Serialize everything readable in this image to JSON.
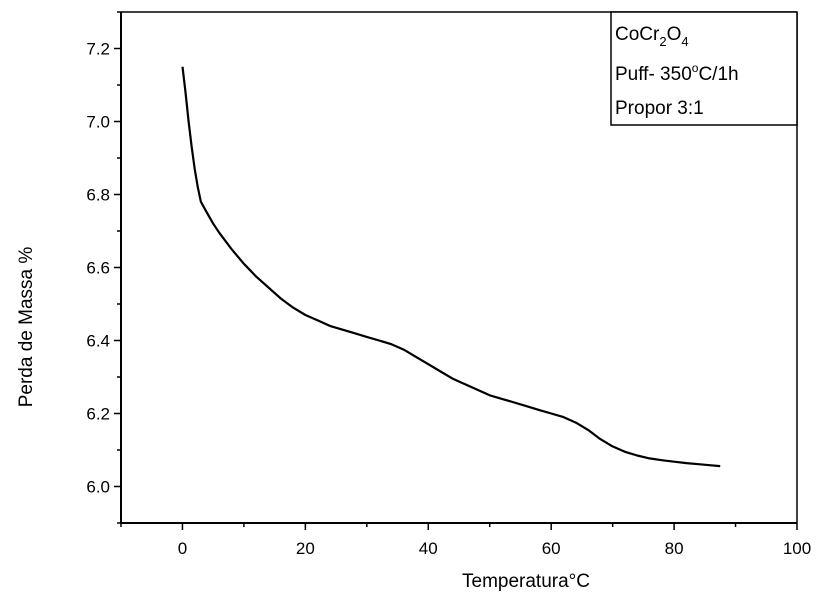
{
  "chart_data": {
    "type": "line",
    "xlabel": "Temperatura°C",
    "ylabel": "Perda de Massa %",
    "xlim": [
      -10,
      100
    ],
    "ylim": [
      5.9,
      7.3
    ],
    "x_ticks": [
      0,
      20,
      40,
      60,
      80,
      100
    ],
    "y_ticks": [
      6.0,
      6.2,
      6.4,
      6.6,
      6.8,
      7.0,
      7.2
    ],
    "x_tick_labels": [
      "0",
      "20",
      "40",
      "60",
      "80",
      "100"
    ],
    "y_tick_labels": [
      "6.0",
      "6.2",
      "6.4",
      "6.6",
      "6.8",
      "7.0",
      "7.2"
    ],
    "grid": false,
    "legend": {
      "placement": "top-right",
      "lines": [
        {
          "main": "CoCr",
          "sub1": "2",
          "mid": "O",
          "sub2": "4"
        },
        {
          "main": "Puff- 350",
          "sup": "o",
          "rest": "C/1h"
        },
        {
          "main": "Propor 3:1"
        }
      ]
    },
    "series": [
      {
        "x": [
          0,
          0.5,
          1,
          1.5,
          2,
          2.5,
          3,
          4,
          5,
          6,
          8,
          10,
          12,
          14,
          16,
          18,
          20,
          22,
          24,
          26,
          28,
          30,
          32,
          34,
          36,
          38,
          40,
          42,
          44,
          46,
          48,
          50,
          52,
          54,
          56,
          58,
          60,
          62,
          64,
          66,
          68,
          70,
          72,
          74,
          76,
          78,
          80,
          82,
          84,
          86,
          87.5
        ],
        "y": [
          7.15,
          7.08,
          7.0,
          6.93,
          6.87,
          6.82,
          6.78,
          6.75,
          6.72,
          6.695,
          6.65,
          6.61,
          6.575,
          6.545,
          6.515,
          6.49,
          6.47,
          6.455,
          6.44,
          6.43,
          6.42,
          6.41,
          6.4,
          6.39,
          6.375,
          6.355,
          6.335,
          6.315,
          6.295,
          6.28,
          6.265,
          6.25,
          6.24,
          6.23,
          6.22,
          6.21,
          6.2,
          6.19,
          6.175,
          6.155,
          6.13,
          6.11,
          6.095,
          6.085,
          6.077,
          6.072,
          6.068,
          6.064,
          6.061,
          6.058,
          6.056
        ]
      }
    ]
  }
}
